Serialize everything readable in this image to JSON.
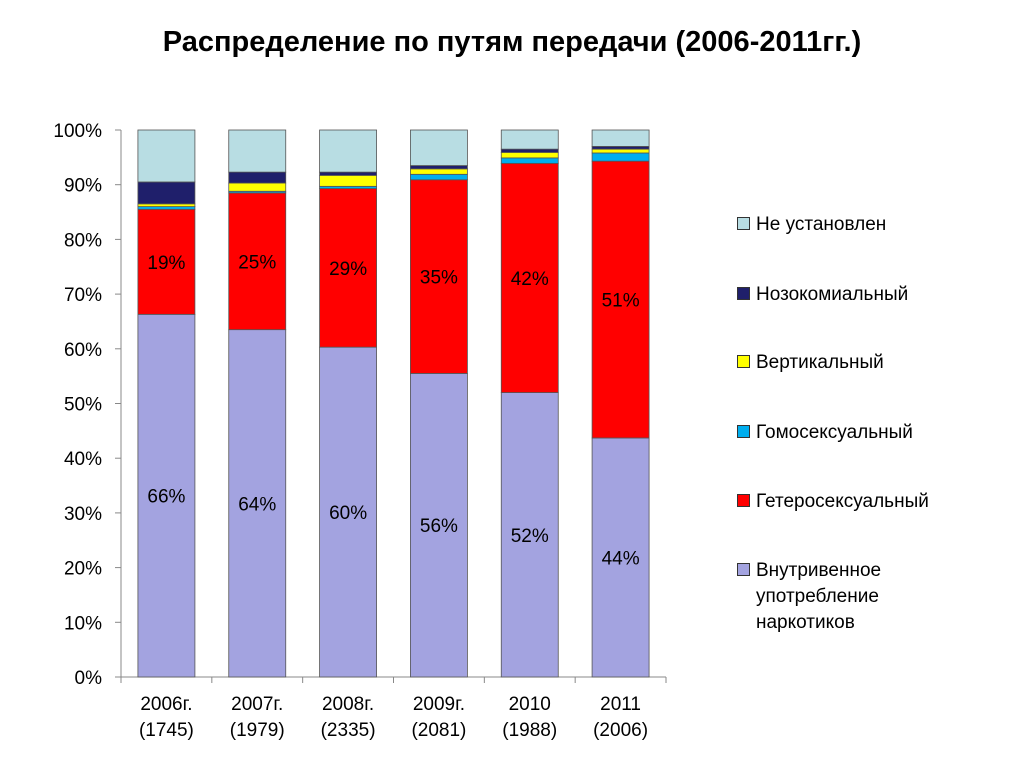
{
  "title": "Распределение по путям передачи (2006-2011гг.)",
  "chart_data": {
    "type": "bar",
    "stacked": true,
    "categories": [
      "2006г.\n(1745)",
      "2007г.\n(1979)",
      "2008г.\n(2335)",
      "2009г.\n(2081)",
      "2010\n(1988)",
      "2011\n(2006)"
    ],
    "ylim": [
      0,
      100
    ],
    "yticks": [
      "0%",
      "10%",
      "20%",
      "30%",
      "40%",
      "50%",
      "60%",
      "70%",
      "80%",
      "90%",
      "100%"
    ],
    "series": [
      {
        "name": "Внутривенное\nупотребление\nнаркотиков",
        "color": "#A3A3E0",
        "values": [
          66.3,
          63.5,
          60.3,
          55.5,
          52,
          43.7
        ],
        "labels": [
          "66%",
          "64%",
          "60%",
          "56%",
          "52%",
          "44%"
        ]
      },
      {
        "name": "Гетеросексуальный",
        "color": "#FF0000",
        "values": [
          19.2,
          25,
          29,
          35.4,
          41.9,
          50.6
        ],
        "labels": [
          "19%",
          "25%",
          "29%",
          "35%",
          "42%",
          "51%"
        ]
      },
      {
        "name": "Гомосексуальный",
        "color": "#00AEEF",
        "values": [
          0.5,
          0.3,
          0.4,
          1,
          1,
          1.5
        ],
        "labels": [
          "",
          "",
          "",
          "",
          "",
          ""
        ]
      },
      {
        "name": "Вертикальный",
        "color": "#FFFF00",
        "values": [
          0.5,
          1.5,
          2,
          1,
          1,
          0.7
        ],
        "labels": [
          "",
          "",
          "",
          "",
          "",
          ""
        ]
      },
      {
        "name": "Нозокомиальный",
        "color": "#1F1F6B",
        "values": [
          4,
          2,
          0.6,
          0.6,
          0.6,
          0.5
        ],
        "labels": [
          "",
          "",
          "",
          "",
          "",
          ""
        ]
      },
      {
        "name": "Не установлен",
        "color": "#B8DDE3",
        "values": [
          9.5,
          7.7,
          7.7,
          6.5,
          3.5,
          3
        ],
        "labels": [
          "",
          "",
          "",
          "",
          "",
          ""
        ]
      }
    ],
    "legend_position": "right"
  }
}
